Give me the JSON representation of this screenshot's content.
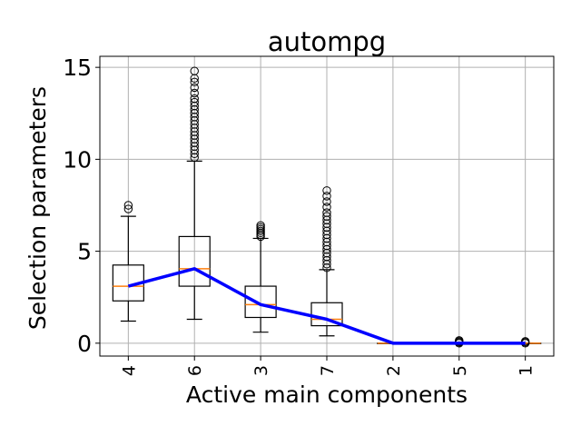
{
  "chart_data": {
    "type": "box",
    "title": "autompg",
    "xlabel": "Active main components",
    "ylabel": "Selection parameters",
    "categories": [
      "4",
      "6",
      "3",
      "7",
      "2",
      "5",
      "1"
    ],
    "ylim": [
      -0.7,
      15.6
    ],
    "yticks": [
      0,
      5,
      10,
      15
    ],
    "grid": true,
    "boxes": [
      {
        "category": "4",
        "q1": 2.3,
        "median": 3.1,
        "q3": 4.25,
        "whislo": 1.2,
        "whishi": 6.9,
        "fliers": [
          7.3,
          7.5
        ]
      },
      {
        "category": "6",
        "q1": 3.1,
        "median": 4.05,
        "q3": 5.8,
        "whislo": 1.3,
        "whishi": 9.9,
        "fliers": [
          10.1,
          10.3,
          10.5,
          10.7,
          10.9,
          11.1,
          11.3,
          11.5,
          11.7,
          11.9,
          12.1,
          12.3,
          12.5,
          12.7,
          12.9,
          13.1,
          13.3,
          13.6,
          13.9,
          14.2,
          14.4,
          14.8
        ]
      },
      {
        "category": "3",
        "q1": 1.4,
        "median": 2.1,
        "q3": 3.1,
        "whislo": 0.6,
        "whishi": 5.7,
        "fliers": [
          5.8,
          5.9,
          6.0,
          6.1,
          6.2,
          6.3,
          6.4
        ]
      },
      {
        "category": "7",
        "q1": 0.95,
        "median": 1.3,
        "q3": 2.2,
        "whislo": 0.4,
        "whishi": 4.0,
        "fliers": [
          4.1,
          4.3,
          4.5,
          4.7,
          4.9,
          5.1,
          5.3,
          5.5,
          5.7,
          5.9,
          6.1,
          6.3,
          6.5,
          6.7,
          6.9,
          7.1,
          7.4,
          7.7,
          8.0,
          8.3
        ]
      },
      {
        "category": "2",
        "q1": 0.0,
        "median": 0.0,
        "q3": 0.0,
        "whislo": 0.0,
        "whishi": 0.0,
        "fliers": []
      },
      {
        "category": "5",
        "q1": 0.0,
        "median": 0.0,
        "q3": 0.0,
        "whislo": 0.0,
        "whishi": 0.0,
        "fliers": [
          0.0,
          0.05,
          0.1,
          0.15
        ]
      },
      {
        "category": "1",
        "q1": 0.0,
        "median": 0.0,
        "q3": 0.0,
        "whislo": 0.0,
        "whishi": 0.0,
        "fliers": [
          0.0,
          0.05,
          0.1
        ]
      }
    ],
    "median_line": {
      "color": "#0000ff",
      "values": [
        3.1,
        4.05,
        2.1,
        1.3,
        0.0,
        0.0,
        0.0
      ]
    },
    "colors": {
      "median": "#ff7f0e",
      "line": "#0000ff",
      "box": "#000000",
      "grid": "#b0b0b0"
    }
  }
}
